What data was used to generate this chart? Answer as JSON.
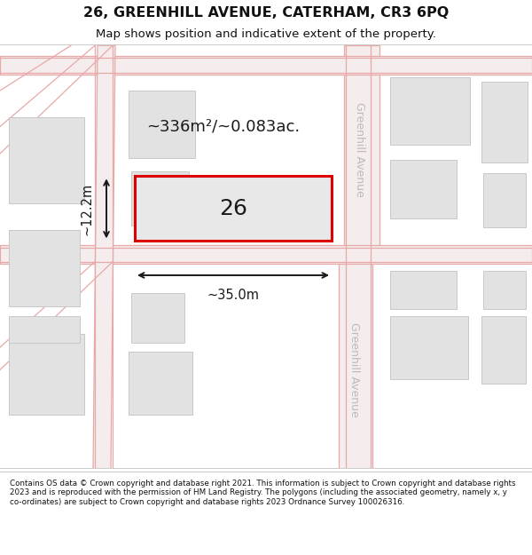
{
  "title_line1": "26, GREENHILL AVENUE, CATERHAM, CR3 6PQ",
  "title_line2": "Map shows position and indicative extent of the property.",
  "footer_text": "Contains OS data © Crown copyright and database right 2021. This information is subject to Crown copyright and database rights 2023 and is reproduced with the permission of HM Land Registry. The polygons (including the associated geometry, namely x, y co-ordinates) are subject to Crown copyright and database rights 2023 Ordnance Survey 100026316.",
  "area_text": "~336m²/~0.083ac.",
  "label_26": "26",
  "dim_width": "~35.0m",
  "dim_height": "~12.2m",
  "street_label": "Greenhill Avenue",
  "map_bg": "#f0efef",
  "road_fill": "#f5eded",
  "road_line": "#e8a8a8",
  "building_fill": "#e2e2e2",
  "building_edge": "#c8c8c8",
  "plot_edge": "#dd0000",
  "plot_fill": "#e8e8e8",
  "dim_color": "#1a1a1a",
  "street_color": "#bbbbbb",
  "title_color": "#111111",
  "footer_color": "#111111"
}
